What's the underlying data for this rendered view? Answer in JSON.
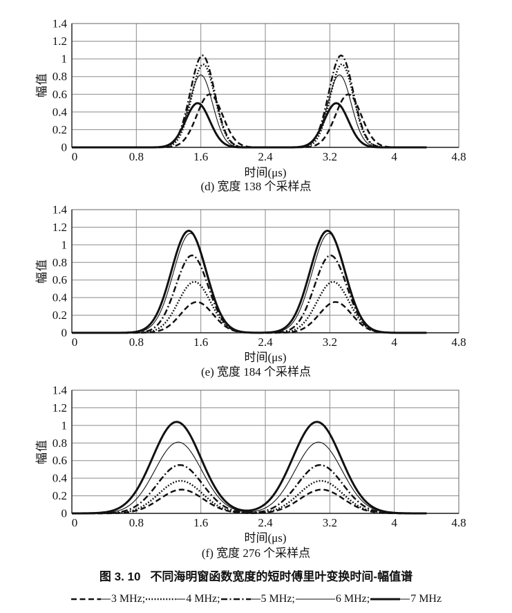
{
  "figure": {
    "caption_number": "图 3. 10",
    "caption_text": "不同海明窗函数宽度的短时傅里叶变换时间-幅值谱"
  },
  "colors": {
    "line": "#111111",
    "grid": "#8a8a8a",
    "border": "#666666",
    "axis": "#1a1a1a",
    "background": "#ffffff"
  },
  "legend": {
    "items": [
      {
        "label": "3 MHz;",
        "style": "dashed"
      },
      {
        "label": "4 MHz;",
        "style": "dotted"
      },
      {
        "label": "5 MHz;",
        "style": "dashdot"
      },
      {
        "label": "6 MHz;",
        "style": "solid-thin"
      },
      {
        "label": "7 MHz",
        "style": "solid-thick"
      }
    ]
  },
  "chart_data": [
    {
      "type": "line",
      "panel": "d",
      "caption": "(d) 宽度 138 个采样点",
      "xlabel": "时间(μs)",
      "ylabel": "幅值",
      "xlim": [
        0,
        4.8
      ],
      "ylim": [
        0,
        1.4
      ],
      "x_ticks": [
        0,
        0.8,
        1.6,
        2.4,
        3.2,
        4,
        4.8
      ],
      "x_tick_labels": [
        "0",
        "0.8",
        "1.6",
        "2.4",
        "3.2",
        "4",
        "4.8"
      ],
      "y_ticks": [
        0,
        0.2,
        0.4,
        0.6,
        0.8,
        1,
        1.2,
        1.4
      ],
      "y_tick_labels": [
        "0",
        "0.2",
        "0.4",
        "0.6",
        "0.8",
        "1",
        "1.2",
        "1.4"
      ],
      "grid": true,
      "data_end_t": 4.4,
      "series": [
        {
          "name": "3 MHz",
          "style": "dashed",
          "peak_height": 0.6,
          "peak1_t": 1.71,
          "peak2_t": 3.43,
          "sigma": 0.16
        },
        {
          "name": "4 MHz",
          "style": "dotted",
          "peak_height": 0.94,
          "peak1_t": 1.63,
          "peak2_t": 3.35,
          "sigma": 0.145
        },
        {
          "name": "5 MHz",
          "style": "dashdot",
          "peak_height": 1.04,
          "peak1_t": 1.62,
          "peak2_t": 3.34,
          "sigma": 0.15
        },
        {
          "name": "6 MHz",
          "style": "solid-thin",
          "peak_height": 0.82,
          "peak1_t": 1.6,
          "peak2_t": 3.32,
          "sigma": 0.145
        },
        {
          "name": "7 MHz",
          "style": "solid-thick",
          "peak_height": 0.5,
          "peak1_t": 1.56,
          "peak2_t": 3.28,
          "sigma": 0.15
        }
      ]
    },
    {
      "type": "line",
      "panel": "e",
      "caption": "(e) 宽度 184 个采样点",
      "xlabel": "时间(μs)",
      "ylabel": "幅值",
      "xlim": [
        0,
        4.8
      ],
      "ylim": [
        0,
        1.4
      ],
      "x_ticks": [
        0,
        0.8,
        1.6,
        2.4,
        3.2,
        4,
        4.8
      ],
      "x_tick_labels": [
        "0",
        "0.8",
        "1.6",
        "2.4",
        "3.2",
        "4",
        "4.8"
      ],
      "y_ticks": [
        0,
        0.2,
        0.4,
        0.6,
        0.8,
        1,
        1.2,
        1.4
      ],
      "y_tick_labels": [
        "0",
        "0.2",
        "0.4",
        "0.6",
        "0.8",
        "1",
        "1.2",
        "1.4"
      ],
      "grid": true,
      "data_end_t": 4.4,
      "series": [
        {
          "name": "3 MHz",
          "style": "dashed",
          "peak_height": 0.35,
          "peak1_t": 1.55,
          "peak2_t": 3.27,
          "sigma": 0.2
        },
        {
          "name": "4 MHz",
          "style": "dotted",
          "peak_height": 0.58,
          "peak1_t": 1.52,
          "peak2_t": 3.24,
          "sigma": 0.2
        },
        {
          "name": "5 MHz",
          "style": "dashdot",
          "peak_height": 0.88,
          "peak1_t": 1.49,
          "peak2_t": 3.21,
          "sigma": 0.2
        },
        {
          "name": "6 MHz",
          "style": "solid-thin",
          "peak_height": 1.13,
          "peak1_t": 1.47,
          "peak2_t": 3.19,
          "sigma": 0.21
        },
        {
          "name": "7 MHz",
          "style": "solid-thick",
          "peak_height": 1.16,
          "peak1_t": 1.45,
          "peak2_t": 3.17,
          "sigma": 0.215
        }
      ]
    },
    {
      "type": "line",
      "panel": "f",
      "caption": "(f) 宽度 276 个采样点",
      "xlabel": "时间(μs)",
      "ylabel": "幅值",
      "xlim": [
        0,
        4.8
      ],
      "ylim": [
        0,
        1.4
      ],
      "x_ticks": [
        0,
        0.8,
        1.6,
        2.4,
        3.2,
        4,
        4.8
      ],
      "x_tick_labels": [
        "0",
        "0.8",
        "1.6",
        "2.4",
        "3.2",
        "4",
        "4.8"
      ],
      "y_ticks": [
        0,
        0.2,
        0.4,
        0.6,
        0.8,
        1,
        1.2,
        1.4
      ],
      "y_tick_labels": [
        "0",
        "0.2",
        "0.4",
        "0.6",
        "0.8",
        "1",
        "1.2",
        "1.4"
      ],
      "grid": true,
      "data_end_t": 4.4,
      "series": [
        {
          "name": "3 MHz",
          "style": "dashed",
          "peak_height": 0.27,
          "peak1_t": 1.36,
          "peak2_t": 3.1,
          "sigma": 0.27
        },
        {
          "name": "4 MHz",
          "style": "dotted",
          "peak_height": 0.37,
          "peak1_t": 1.35,
          "peak2_t": 3.09,
          "sigma": 0.27
        },
        {
          "name": "5 MHz",
          "style": "dashdot",
          "peak_height": 0.55,
          "peak1_t": 1.34,
          "peak2_t": 3.08,
          "sigma": 0.28
        },
        {
          "name": "6 MHz",
          "style": "solid-thin",
          "peak_height": 0.81,
          "peak1_t": 1.32,
          "peak2_t": 3.06,
          "sigma": 0.29
        },
        {
          "name": "7 MHz",
          "style": "solid-thick",
          "peak_height": 1.04,
          "peak1_t": 1.3,
          "peak2_t": 3.04,
          "sigma": 0.3
        }
      ]
    }
  ]
}
